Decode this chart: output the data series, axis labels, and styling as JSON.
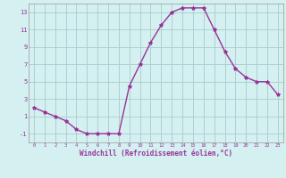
{
  "hours": [
    0,
    1,
    2,
    3,
    4,
    5,
    6,
    7,
    8,
    9,
    10,
    11,
    12,
    13,
    14,
    15,
    16,
    17,
    18,
    19,
    20,
    21,
    22,
    23
  ],
  "windchill": [
    2.0,
    1.5,
    1.0,
    0.5,
    -0.5,
    -1.0,
    -1.0,
    -1.0,
    -1.0,
    4.5,
    7.0,
    9.5,
    11.5,
    13.0,
    13.5,
    13.5,
    13.5,
    11.0,
    8.5,
    6.5,
    5.5,
    5.0,
    5.0,
    3.5
  ],
  "line_color": "#993399",
  "marker": "*",
  "marker_size": 3,
  "bg_color": "#d4f0f0",
  "grid_color": "#aacccc",
  "ylabel_values": [
    -1,
    1,
    3,
    5,
    7,
    9,
    11,
    13
  ],
  "xlabel": "Windchill (Refroidissement éolien,°C)",
  "xlim": [
    -0.5,
    23.5
  ],
  "ylim": [
    -2,
    14
  ]
}
